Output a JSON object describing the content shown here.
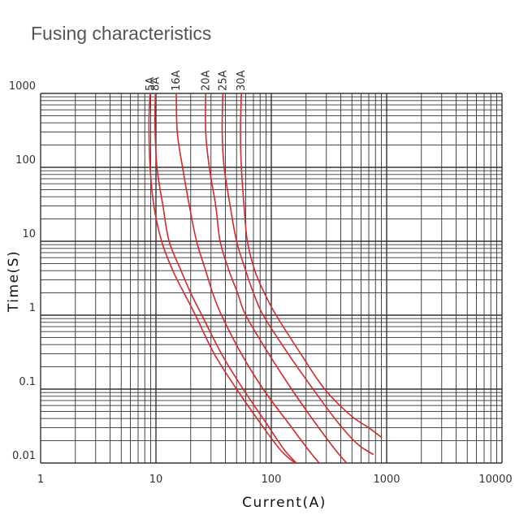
{
  "title": "Fusing characteristics",
  "chart_data": {
    "type": "line",
    "title": "Fusing characteristics",
    "xlabel": "Current(A)",
    "ylabel": "Time(S)",
    "xscale": "log",
    "yscale": "log",
    "xlim": [
      1,
      10000
    ],
    "ylim": [
      0.01,
      1000
    ],
    "grid": true,
    "legend": "curve labels above the top of the plot",
    "line_color": "#d42a2a",
    "grid_color": "#333333",
    "x_ticks": [
      {
        "value": 1,
        "label": "1"
      },
      {
        "value": 10,
        "label": "10"
      },
      {
        "value": 100,
        "label": "100"
      },
      {
        "value": 1000,
        "label": "1000"
      },
      {
        "value": 10000,
        "label": "10000"
      }
    ],
    "y_ticks": [
      {
        "value": 0.01,
        "label": "0.01"
      },
      {
        "value": 0.1,
        "label": "0.1"
      },
      {
        "value": 1,
        "label": "1"
      },
      {
        "value": 10,
        "label": "10"
      },
      {
        "value": 100,
        "label": "100"
      },
      {
        "value": 1000,
        "label": "1000"
      }
    ],
    "series": [
      {
        "name": "5A",
        "points": [
          [
            8.9,
            1000
          ],
          [
            8.7,
            400
          ],
          [
            8.9,
            100
          ],
          [
            9.6,
            30
          ],
          [
            11.2,
            10
          ],
          [
            14,
            4
          ],
          [
            17.5,
            2
          ],
          [
            22,
            1
          ],
          [
            32,
            0.3
          ],
          [
            50,
            0.1
          ],
          [
            80,
            0.035
          ],
          [
            120,
            0.015
          ],
          [
            160,
            0.01
          ]
        ]
      },
      {
        "name": "8A",
        "points": [
          [
            9.9,
            1000
          ],
          [
            9.8,
            400
          ],
          [
            10.2,
            100
          ],
          [
            11.5,
            30
          ],
          [
            13,
            10
          ],
          [
            16.5,
            4
          ],
          [
            20,
            2
          ],
          [
            25,
            1
          ],
          [
            37,
            0.3
          ],
          [
            57,
            0.1
          ],
          [
            90,
            0.035
          ],
          [
            130,
            0.015
          ],
          [
            165,
            0.01
          ]
        ]
      },
      {
        "name": "16A",
        "points": [
          [
            15,
            1000
          ],
          [
            15.3,
            300
          ],
          [
            17,
            100
          ],
          [
            19.5,
            30
          ],
          [
            22.5,
            10
          ],
          [
            27,
            4
          ],
          [
            31,
            2
          ],
          [
            37,
            1
          ],
          [
            55,
            0.3
          ],
          [
            85,
            0.1
          ],
          [
            140,
            0.035
          ],
          [
            210,
            0.015
          ],
          [
            260,
            0.01
          ]
        ]
      },
      {
        "name": "20A",
        "points": [
          [
            27,
            1000
          ],
          [
            27,
            300
          ],
          [
            29,
            100
          ],
          [
            33,
            30
          ],
          [
            36,
            10
          ],
          [
            43,
            4
          ],
          [
            51,
            2
          ],
          [
            60,
            1
          ],
          [
            95,
            0.3
          ],
          [
            150,
            0.1
          ],
          [
            240,
            0.035
          ],
          [
            360,
            0.015
          ],
          [
            450,
            0.01
          ]
        ]
      },
      {
        "name": "25A",
        "points": [
          [
            38,
            1000
          ],
          [
            37.5,
            300
          ],
          [
            39,
            100
          ],
          [
            44,
            30
          ],
          [
            50,
            10
          ],
          [
            60,
            4
          ],
          [
            70,
            2
          ],
          [
            85,
            1
          ],
          [
            140,
            0.3
          ],
          [
            230,
            0.1
          ],
          [
            380,
            0.035
          ],
          [
            560,
            0.018
          ],
          [
            770,
            0.013
          ]
        ]
      },
      {
        "name": "30A",
        "points": [
          [
            55,
            1000
          ],
          [
            54,
            300
          ],
          [
            55,
            100
          ],
          [
            58,
            30
          ],
          [
            62,
            10
          ],
          [
            72,
            4
          ],
          [
            87,
            2
          ],
          [
            110,
            1
          ],
          [
            180,
            0.3
          ],
          [
            290,
            0.1
          ],
          [
            480,
            0.045
          ],
          [
            700,
            0.03
          ],
          [
            910,
            0.022
          ]
        ]
      }
    ]
  }
}
